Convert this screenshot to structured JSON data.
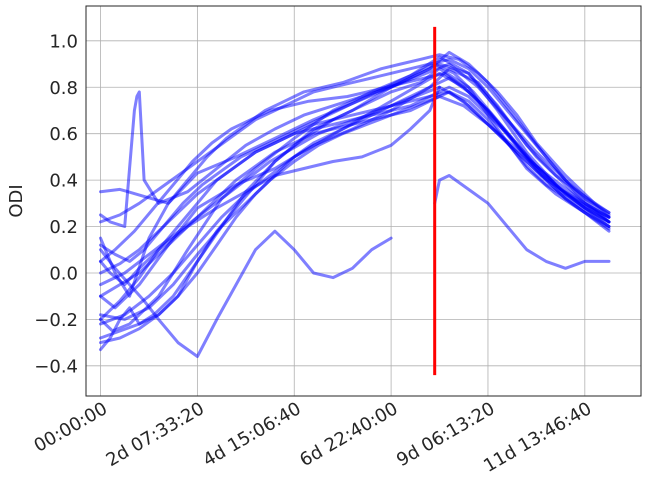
{
  "chart_data": {
    "type": "line",
    "title": "",
    "xlabel": "",
    "ylabel": "ODI",
    "x_unit": "seconds",
    "xlim": [
      -30000,
      1116000
    ],
    "ylim": [
      -0.53,
      1.15
    ],
    "grid": true,
    "legend": "none",
    "series_color": "#0000ff",
    "series_opacity": 0.5,
    "x_ticks": [
      {
        "value": 0,
        "label": "00:00:00"
      },
      {
        "value": 200000,
        "label": "2d 07:33:20"
      },
      {
        "value": 400000,
        "label": "4d 15:06:40"
      },
      {
        "value": 600000,
        "label": "6d 22:40:00"
      },
      {
        "value": 800000,
        "label": "9d 06:13:20"
      },
      {
        "value": 1000000,
        "label": "11d 13:46:40"
      }
    ],
    "y_ticks": [
      {
        "value": -0.4,
        "label": "−0.4"
      },
      {
        "value": -0.2,
        "label": "−0.2"
      },
      {
        "value": 0.0,
        "label": "0.0"
      },
      {
        "value": 0.2,
        "label": "0.2"
      },
      {
        "value": 0.4,
        "label": "0.4"
      },
      {
        "value": 0.6,
        "label": "0.6"
      },
      {
        "value": 0.8,
        "label": "0.8"
      },
      {
        "value": 1.0,
        "label": "1.0"
      }
    ],
    "marker_line": {
      "x": 690000,
      "y_range": [
        -0.44,
        1.06
      ],
      "color": "#ff0000"
    },
    "series": [
      {
        "x": [
          0,
          40000,
          90000,
          140000,
          200000,
          280000,
          360000,
          440000,
          520000,
          600000,
          660000,
          700000,
          760000,
          820000,
          880000,
          940000,
          1000000,
          1050000
        ],
        "y": [
          0.35,
          0.36,
          0.33,
          0.3,
          0.43,
          0.5,
          0.58,
          0.66,
          0.73,
          0.8,
          0.86,
          0.9,
          0.86,
          0.72,
          0.55,
          0.42,
          0.33,
          0.26
        ]
      },
      {
        "x": [
          0,
          30000,
          80000,
          140000,
          200000,
          280000,
          360000,
          440000,
          520000,
          600000,
          680000,
          720000,
          780000,
          840000,
          900000,
          960000,
          1000000,
          1050000
        ],
        "y": [
          -0.1,
          -0.15,
          -0.05,
          0.12,
          0.28,
          0.38,
          0.45,
          0.55,
          0.62,
          0.7,
          0.8,
          0.88,
          0.82,
          0.66,
          0.5,
          0.38,
          0.3,
          0.22
        ]
      },
      {
        "x": [
          0,
          25000,
          60000,
          120000,
          180000,
          250000,
          320000,
          400000,
          480000,
          560000,
          640000,
          700000,
          760000,
          820000,
          880000,
          940000,
          1000000,
          1050000
        ],
        "y": [
          -0.2,
          -0.25,
          -0.22,
          -0.1,
          0.1,
          0.32,
          0.45,
          0.58,
          0.7,
          0.78,
          0.85,
          0.93,
          0.86,
          0.7,
          0.52,
          0.38,
          0.28,
          0.2
        ]
      },
      {
        "x": [
          0,
          20000,
          50000,
          80000,
          120000,
          180000,
          240000,
          300000,
          360000,
          420000,
          480000,
          540000,
          600000,
          640000,
          680000,
          700000
        ],
        "y": [
          0.05,
          0.0,
          -0.05,
          0.02,
          0.1,
          0.2,
          0.28,
          0.35,
          0.42,
          0.45,
          0.48,
          0.5,
          0.55,
          0.62,
          0.7,
          0.8
        ]
      },
      {
        "x": [
          0,
          20000,
          40000,
          60000,
          80000,
          110000,
          150000,
          200000,
          250000,
          300000,
          360000,
          420000,
          480000,
          540000,
          600000,
          660000,
          700000,
          760000,
          820000,
          880000,
          940000,
          1000000,
          1050000
        ],
        "y": [
          -0.33,
          -0.28,
          -0.2,
          -0.15,
          -0.22,
          -0.18,
          -0.1,
          0.05,
          0.2,
          0.35,
          0.48,
          0.58,
          0.66,
          0.72,
          0.78,
          0.82,
          0.88,
          0.8,
          0.62,
          0.45,
          0.34,
          0.26,
          0.19
        ]
      },
      {
        "x": [
          0,
          20000,
          50000,
          70000,
          75000,
          80000,
          90000,
          120000,
          180000,
          240000,
          300000,
          360000,
          420000,
          480000,
          540000,
          600000,
          660000,
          720000,
          780000,
          840000,
          900000,
          960000,
          1050000
        ],
        "y": [
          0.25,
          0.22,
          0.2,
          0.7,
          0.76,
          0.78,
          0.4,
          0.3,
          0.35,
          0.45,
          0.55,
          0.62,
          0.68,
          0.72,
          0.76,
          0.8,
          0.85,
          0.9,
          0.8,
          0.66,
          0.52,
          0.4,
          0.24
        ]
      },
      {
        "x": [
          690000,
          700000,
          720000,
          760000,
          800000,
          840000,
          880000,
          920000,
          960000,
          1000000,
          1050000
        ],
        "y": [
          0.3,
          0.4,
          0.42,
          0.36,
          0.3,
          0.2,
          0.1,
          0.05,
          0.02,
          0.05,
          0.05
        ]
      },
      {
        "x": [
          0,
          30000,
          60000,
          90000,
          120000,
          160000,
          200000,
          240000,
          280000,
          320000,
          360000,
          400000,
          440000,
          480000,
          520000,
          560000,
          600000
        ],
        "y": [
          0.1,
          0.02,
          -0.05,
          -0.12,
          -0.2,
          -0.3,
          -0.36,
          -0.2,
          -0.05,
          0.1,
          0.18,
          0.1,
          0.0,
          -0.02,
          0.02,
          0.1,
          0.15
        ]
      },
      {
        "x": [
          0,
          40000,
          80000,
          120000,
          160000,
          200000,
          240000,
          280000,
          320000,
          360000,
          400000,
          440000,
          480000,
          520000,
          560000,
          600000,
          640000,
          680000,
          720000,
          760000,
          800000,
          860000,
          920000,
          980000,
          1050000
        ],
        "y": [
          -0.28,
          -0.25,
          -0.22,
          -0.18,
          -0.1,
          0.05,
          0.18,
          0.28,
          0.38,
          0.48,
          0.55,
          0.62,
          0.66,
          0.7,
          0.75,
          0.8,
          0.84,
          0.88,
          0.95,
          0.9,
          0.82,
          0.66,
          0.5,
          0.35,
          0.22
        ]
      },
      {
        "x": [
          0,
          30000,
          60000,
          100000,
          140000,
          180000,
          220000,
          260000,
          300000,
          340000,
          380000,
          420000,
          460000,
          500000,
          540000,
          580000,
          620000,
          660000,
          700000,
          740000,
          780000,
          820000,
          860000,
          900000,
          960000,
          1020000,
          1050000
        ],
        "y": [
          0.15,
          0.0,
          -0.1,
          0.15,
          0.3,
          0.4,
          0.5,
          0.58,
          0.64,
          0.7,
          0.74,
          0.78,
          0.8,
          0.82,
          0.85,
          0.88,
          0.9,
          0.92,
          0.94,
          0.92,
          0.86,
          0.78,
          0.68,
          0.56,
          0.42,
          0.3,
          0.25
        ]
      },
      {
        "x": [
          0,
          40000,
          80000,
          120000,
          160000,
          200000,
          240000,
          280000,
          320000,
          360000,
          400000,
          440000,
          480000,
          520000,
          560000,
          600000,
          640000,
          680000,
          720000,
          760000,
          800000,
          840000,
          880000,
          920000,
          980000,
          1050000
        ],
        "y": [
          -0.2,
          -0.12,
          -0.02,
          0.1,
          0.2,
          0.3,
          0.4,
          0.46,
          0.52,
          0.56,
          0.6,
          0.64,
          0.66,
          0.68,
          0.7,
          0.72,
          0.74,
          0.76,
          0.78,
          0.74,
          0.66,
          0.56,
          0.46,
          0.38,
          0.3,
          0.2
        ]
      },
      {
        "x": [
          0,
          30000,
          70000,
          110000,
          150000,
          190000,
          230000,
          270000,
          310000,
          350000,
          390000,
          430000,
          470000,
          510000,
          550000,
          590000,
          630000,
          670000,
          710000,
          750000,
          790000,
          830000,
          870000,
          910000,
          960000,
          1010000,
          1050000
        ],
        "y": [
          0.05,
          0.1,
          0.18,
          0.28,
          0.38,
          0.48,
          0.56,
          0.62,
          0.66,
          0.7,
          0.72,
          0.74,
          0.75,
          0.76,
          0.78,
          0.8,
          0.82,
          0.84,
          0.86,
          0.8,
          0.72,
          0.62,
          0.52,
          0.42,
          0.34,
          0.28,
          0.24
        ]
      },
      {
        "x": [
          0,
          50000,
          100000,
          150000,
          200000,
          250000,
          300000,
          350000,
          400000,
          450000,
          500000,
          550000,
          600000,
          650000,
          700000,
          750000,
          800000,
          850000,
          900000,
          950000,
          1000000,
          1050000
        ],
        "y": [
          -0.18,
          -0.2,
          -0.15,
          -0.05,
          0.08,
          0.2,
          0.3,
          0.4,
          0.48,
          0.55,
          0.6,
          0.64,
          0.68,
          0.72,
          0.76,
          0.72,
          0.64,
          0.55,
          0.46,
          0.38,
          0.3,
          0.24
        ]
      },
      {
        "x": [
          0,
          40000,
          80000,
          120000,
          160000,
          200000,
          240000,
          280000,
          320000,
          360000,
          400000,
          440000,
          480000,
          520000,
          560000,
          600000,
          640000,
          680000,
          720000,
          760000,
          800000,
          840000,
          880000,
          920000,
          960000,
          1000000,
          1050000
        ],
        "y": [
          0.22,
          0.25,
          0.3,
          0.36,
          0.42,
          0.48,
          0.54,
          0.6,
          0.66,
          0.7,
          0.74,
          0.78,
          0.8,
          0.82,
          0.84,
          0.86,
          0.88,
          0.9,
          0.92,
          0.88,
          0.8,
          0.7,
          0.6,
          0.5,
          0.4,
          0.32,
          0.26
        ]
      },
      {
        "x": [
          0,
          40000,
          80000,
          120000,
          160000,
          200000,
          240000,
          280000,
          320000,
          360000,
          400000,
          440000,
          480000,
          520000,
          560000,
          600000,
          640000,
          680000,
          720000,
          760000,
          800000,
          840000,
          880000,
          920000,
          960000,
          1000000,
          1050000
        ],
        "y": [
          -0.3,
          -0.28,
          -0.24,
          -0.18,
          -0.1,
          0.0,
          0.12,
          0.24,
          0.34,
          0.42,
          0.5,
          0.56,
          0.6,
          0.64,
          0.68,
          0.72,
          0.76,
          0.8,
          0.84,
          0.78,
          0.7,
          0.6,
          0.5,
          0.4,
          0.32,
          0.26,
          0.2
        ]
      },
      {
        "x": [
          0,
          30000,
          60000,
          90000,
          130000,
          170000,
          210000,
          250000,
          290000,
          330000,
          370000,
          410000,
          450000,
          490000,
          530000,
          570000,
          610000,
          650000,
          690000,
          730000,
          770000,
          810000,
          850000,
          890000,
          940000,
          990000,
          1050000
        ],
        "y": [
          0.12,
          0.08,
          0.05,
          0.1,
          0.2,
          0.3,
          0.38,
          0.44,
          0.5,
          0.54,
          0.58,
          0.62,
          0.66,
          0.7,
          0.74,
          0.78,
          0.82,
          0.86,
          0.9,
          0.86,
          0.78,
          0.68,
          0.58,
          0.48,
          0.38,
          0.3,
          0.22
        ]
      },
      {
        "x": [
          0,
          40000,
          80000,
          120000,
          160000,
          200000,
          240000,
          280000,
          320000,
          360000,
          400000,
          440000,
          480000,
          520000,
          560000,
          600000,
          640000,
          680000,
          720000,
          760000,
          800000,
          840000,
          880000,
          920000,
          960000,
          1000000,
          1050000
        ],
        "y": [
          -0.1,
          -0.05,
          0.0,
          0.08,
          0.16,
          0.24,
          0.32,
          0.4,
          0.46,
          0.52,
          0.56,
          0.6,
          0.62,
          0.64,
          0.66,
          0.68,
          0.7,
          0.74,
          0.78,
          0.72,
          0.64,
          0.56,
          0.48,
          0.4,
          0.32,
          0.26,
          0.18
        ]
      },
      {
        "x": [
          0,
          50000,
          100000,
          150000,
          200000,
          250000,
          300000,
          350000,
          400000,
          450000,
          500000,
          550000,
          600000,
          650000,
          700000,
          750000,
          800000,
          850000,
          900000,
          950000,
          1000000,
          1050000
        ],
        "y": [
          -0.22,
          -0.18,
          -0.1,
          0.0,
          0.12,
          0.24,
          0.34,
          0.42,
          0.5,
          0.56,
          0.62,
          0.68,
          0.74,
          0.8,
          0.86,
          0.8,
          0.7,
          0.58,
          0.46,
          0.36,
          0.28,
          0.22
        ]
      },
      {
        "x": [
          0,
          40000,
          80000,
          120000,
          160000,
          200000,
          240000,
          280000,
          320000,
          360000,
          400000,
          440000,
          480000,
          520000,
          560000,
          600000,
          640000,
          680000,
          720000,
          760000,
          800000,
          840000,
          880000,
          920000,
          960000,
          1000000,
          1050000
        ],
        "y": [
          0.0,
          0.04,
          0.1,
          0.18,
          0.26,
          0.34,
          0.4,
          0.46,
          0.52,
          0.56,
          0.6,
          0.62,
          0.64,
          0.66,
          0.68,
          0.7,
          0.72,
          0.76,
          0.8,
          0.76,
          0.68,
          0.6,
          0.5,
          0.42,
          0.34,
          0.28,
          0.22
        ]
      },
      {
        "x": [
          0,
          50000,
          100000,
          150000,
          200000,
          250000,
          300000,
          350000,
          400000,
          450000,
          500000,
          550000,
          600000,
          650000,
          700000,
          750000,
          800000,
          850000,
          900000,
          950000,
          1000000,
          1050000
        ],
        "y": [
          -0.05,
          0.0,
          0.08,
          0.16,
          0.24,
          0.32,
          0.4,
          0.48,
          0.54,
          0.6,
          0.64,
          0.68,
          0.72,
          0.76,
          0.8,
          0.74,
          0.64,
          0.54,
          0.44,
          0.36,
          0.3,
          0.24
        ]
      }
    ]
  }
}
